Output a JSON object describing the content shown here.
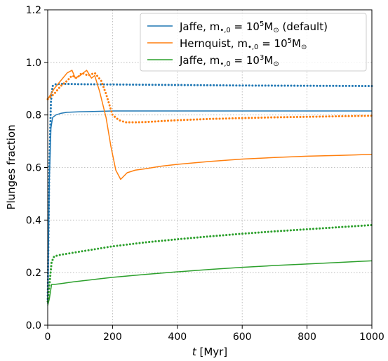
{
  "chart_data": {
    "type": "line",
    "xlabel": {
      "prefix": "t",
      "suffix": " [Myr]"
    },
    "ylabel": "Plunges fraction",
    "xlim": [
      0,
      1000
    ],
    "ylim": [
      0.0,
      1.2
    ],
    "xticks": [
      "0",
      "200",
      "400",
      "600",
      "800",
      "1000"
    ],
    "yticks": [
      "0.0",
      "0.2",
      "0.4",
      "0.6",
      "0.8",
      "1.0",
      "1.2"
    ],
    "grid": true,
    "legend_position": "top-right",
    "legend": [
      {
        "text_a": "Jaffe, m",
        "sub": "•,0",
        "text_b": " = 10",
        "sup": "5",
        "text_c": "M",
        "sub2": "⊙",
        "text_d": " (default)",
        "color": "#1f77b4"
      },
      {
        "text_a": "Hernquist, m",
        "sub": "•,0",
        "text_b": " = 10",
        "sup": "5",
        "text_c": "M",
        "sub2": "⊙",
        "text_d": "",
        "color": "#ff7f0e"
      },
      {
        "text_a": "Jaffe, m",
        "sub": "•,0",
        "text_b": " = 10",
        "sup": "3",
        "text_c": "M",
        "sub2": "⊙",
        "text_d": "",
        "color": "#2ca02c"
      }
    ],
    "series": [
      {
        "color": "#1f77b4",
        "style": "solid",
        "x": [
          0,
          5,
          10,
          15,
          25,
          40,
          60,
          100,
          200,
          400,
          600,
          800,
          1000
        ],
        "y": [
          0.08,
          0.55,
          0.75,
          0.79,
          0.8,
          0.806,
          0.81,
          0.812,
          0.815,
          0.815,
          0.815,
          0.815,
          0.815
        ]
      },
      {
        "color": "#1f77b4",
        "style": "dotted",
        "x": [
          0,
          5,
          10,
          15,
          25,
          40,
          60,
          100,
          200,
          400,
          600,
          800,
          1000
        ],
        "y": [
          0.1,
          0.6,
          0.85,
          0.91,
          0.917,
          0.918,
          0.918,
          0.917,
          0.916,
          0.914,
          0.912,
          0.911,
          0.91
        ]
      },
      {
        "color": "#ff7f0e",
        "style": "solid",
        "x": [
          0,
          20,
          40,
          60,
          75,
          85,
          100,
          120,
          135,
          145,
          160,
          180,
          195,
          210,
          225,
          245,
          270,
          300,
          350,
          400,
          500,
          600,
          700,
          800,
          900,
          1000
        ],
        "y": [
          0.86,
          0.9,
          0.93,
          0.96,
          0.97,
          0.94,
          0.95,
          0.97,
          0.94,
          0.95,
          0.89,
          0.79,
          0.68,
          0.59,
          0.555,
          0.58,
          0.59,
          0.595,
          0.605,
          0.612,
          0.623,
          0.632,
          0.638,
          0.643,
          0.646,
          0.65
        ]
      },
      {
        "color": "#ff7f0e",
        "style": "dotted",
        "x": [
          0,
          20,
          40,
          60,
          75,
          90,
          105,
          125,
          145,
          165,
          180,
          200,
          220,
          240,
          270,
          300,
          400,
          500,
          600,
          700,
          800,
          900,
          1000
        ],
        "y": [
          0.86,
          0.88,
          0.91,
          0.93,
          0.95,
          0.94,
          0.96,
          0.95,
          0.96,
          0.93,
          0.88,
          0.8,
          0.78,
          0.772,
          0.772,
          0.773,
          0.78,
          0.785,
          0.788,
          0.791,
          0.793,
          0.795,
          0.797
        ]
      },
      {
        "color": "#2ca02c",
        "style": "solid",
        "x": [
          0,
          5,
          12,
          20,
          40,
          80,
          150,
          200,
          300,
          400,
          500,
          600,
          700,
          800,
          900,
          1000
        ],
        "y": [
          0.075,
          0.1,
          0.155,
          0.155,
          0.158,
          0.165,
          0.175,
          0.182,
          0.193,
          0.203,
          0.212,
          0.22,
          0.227,
          0.233,
          0.239,
          0.245
        ]
      },
      {
        "color": "#2ca02c",
        "style": "dotted",
        "x": [
          0,
          5,
          12,
          20,
          40,
          80,
          150,
          200,
          300,
          400,
          500,
          600,
          700,
          800,
          900,
          1000
        ],
        "y": [
          0.09,
          0.15,
          0.24,
          0.262,
          0.268,
          0.276,
          0.29,
          0.3,
          0.315,
          0.327,
          0.338,
          0.348,
          0.357,
          0.365,
          0.373,
          0.381
        ]
      }
    ]
  }
}
